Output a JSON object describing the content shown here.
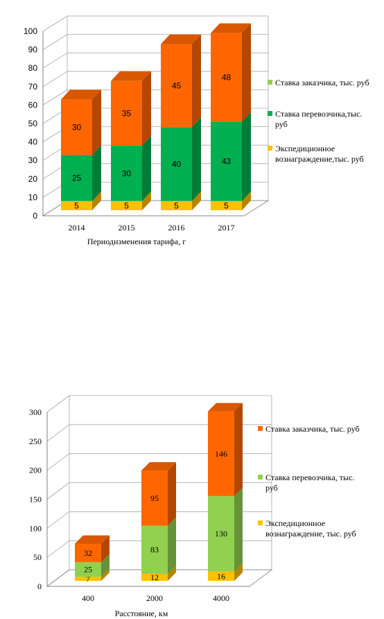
{
  "chart_data": [
    {
      "type": "bar",
      "stacked": true,
      "categories": [
        "2014",
        "2015",
        "2016",
        "2017"
      ],
      "series": [
        {
          "name": "Экспедиционное вознаграждение,тыс. руб",
          "values": [
            5,
            5,
            5,
            5
          ],
          "color": "#ffc000"
        },
        {
          "name": "Ставка перевозчика,тыс. руб",
          "values": [
            25,
            30,
            40,
            43
          ],
          "color": "#00b050"
        },
        {
          "name": "Ставка заказчика, тыс. руб",
          "values": [
            30,
            35,
            45,
            48
          ],
          "color": "#ff6600"
        }
      ],
      "legend": [
        {
          "lines": [
            "Ставка заказчика, тыс. руб"
          ],
          "color": "#92d050"
        },
        {
          "lines": [
            "Ставка перевозчика,тыс.",
            "руб"
          ],
          "color": "#00b050"
        },
        {
          "lines": [
            "Экспедиционное",
            "вознаграждение,тыс. руб"
          ],
          "color": "#ffc000"
        }
      ],
      "xlabel": "Периодизменения тарифа, г",
      "ylim": [
        0,
        100
      ],
      "yticks": [
        0,
        10,
        20,
        30,
        40,
        50,
        60,
        70,
        80,
        90,
        100
      ],
      "grid": true,
      "legend_position": "right"
    },
    {
      "type": "bar",
      "stacked": true,
      "categories": [
        "400",
        "2000",
        "4000"
      ],
      "series": [
        {
          "name": "Экспедиционное вознаграждение, тыс. руб",
          "values": [
            7,
            12,
            16
          ],
          "color": "#ffc000"
        },
        {
          "name": "Ставка перевозчика, тыс. руб",
          "values": [
            25,
            83,
            130
          ],
          "color": "#92d050"
        },
        {
          "name": "Ставка заказчика, тыс. руб",
          "values": [
            32,
            95,
            146
          ],
          "color": "#ff6600"
        }
      ],
      "legend": [
        {
          "lines": [
            "Ставка заказчика, тыс. руб"
          ],
          "color": "#ff6600"
        },
        {
          "lines": [
            "Ставка перевозчика, тыс.",
            "руб"
          ],
          "color": "#92d050"
        },
        {
          "lines": [
            "Экспедиционное",
            "вознаграждение, тыс. руб"
          ],
          "color": "#ffc000"
        }
      ],
      "xlabel": "Расстояние, км",
      "ylim": [
        0,
        300
      ],
      "yticks": [
        0,
        50,
        100,
        150,
        200,
        250,
        300
      ],
      "grid": true,
      "legend_position": "right"
    }
  ]
}
